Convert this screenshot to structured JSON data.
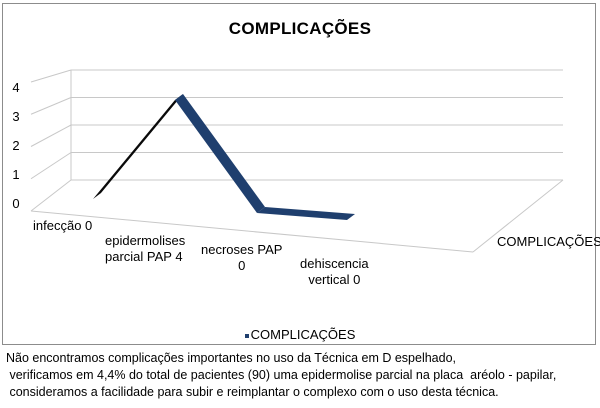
{
  "chart_data": {
    "type": "line",
    "title": "COMPLICAÇÕES",
    "categories": [
      "infecção 0",
      "epidermolises\nparcial PAP 4",
      "necroses PAP\n0",
      "dehiscencia\nvertical 0"
    ],
    "series": [
      {
        "name": "COMPLICAÇÕES",
        "values": [
          0,
          4,
          0,
          0
        ]
      }
    ],
    "ylim": [
      0,
      4
    ],
    "yticks": [
      "0",
      "1",
      "2",
      "3",
      "4"
    ],
    "depth_axis_label": "COMPLICAÇÕES",
    "grid": true,
    "legend_position": "bottom",
    "style": "3d-ribbon",
    "series_color": "#1f3f6e",
    "ribbon_side_color": "#0a0a0a"
  },
  "caption": {
    "lines": [
      "Não encontramos complicações importantes no uso da Técnica em D espelhado,",
      " verificamos em 4,4% do total de pacientes (90) uma epidermolise parcial na placa  aréolo - papilar,",
      " consideramos a facilidade para subir e reimplantar o complexo com o uso desta técnica."
    ]
  }
}
